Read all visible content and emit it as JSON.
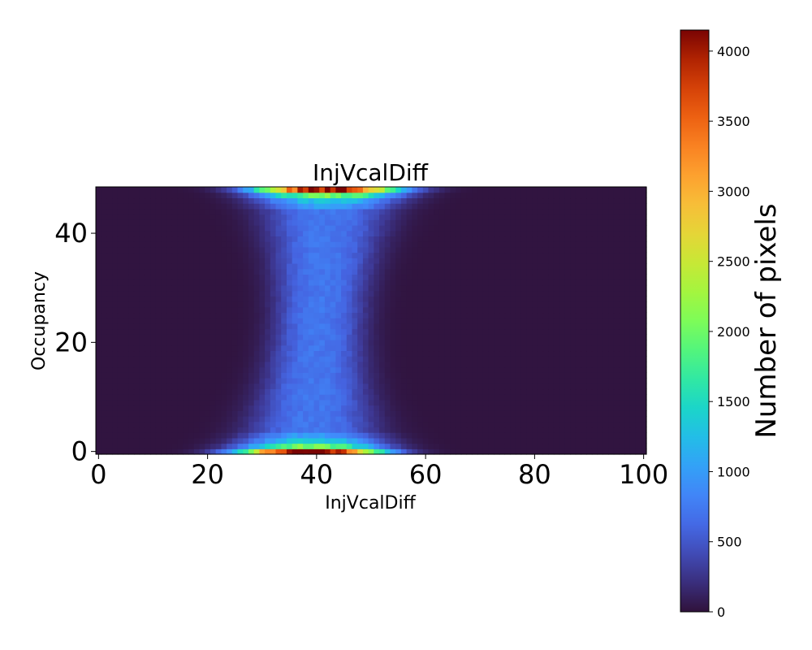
{
  "chart_data": {
    "type": "heatmap",
    "title": "InjVcalDiff",
    "xlabel": "InjVcalDiff",
    "ylabel": "Occupancy",
    "xlim": [
      -0.5,
      100.5
    ],
    "ylim": [
      -0.5,
      48.5
    ],
    "x_ticks": [
      0,
      20,
      40,
      60,
      80,
      100
    ],
    "y_ticks": [
      0,
      20,
      40
    ],
    "grid": false,
    "bins": {
      "x": 101,
      "y": 49
    },
    "cmap": "turbo",
    "colorbar": {
      "label": "Number of pixels",
      "min": 0,
      "max": 4150,
      "ticks": [
        0,
        500,
        1000,
        1500,
        2000,
        2500,
        3000,
        3500,
        4000
      ]
    },
    "distribution": {
      "background_value": 15,
      "center_x_at_occupancy_0": 39,
      "center_x_at_occupancy_48": 42,
      "band_halfwidth_middle": 8,
      "band_halfwidth_edges": 13,
      "band_value_middle": 700,
      "peak_value_occupancy_0": 4150,
      "peak_value_occupancy_48": 4000
    }
  }
}
